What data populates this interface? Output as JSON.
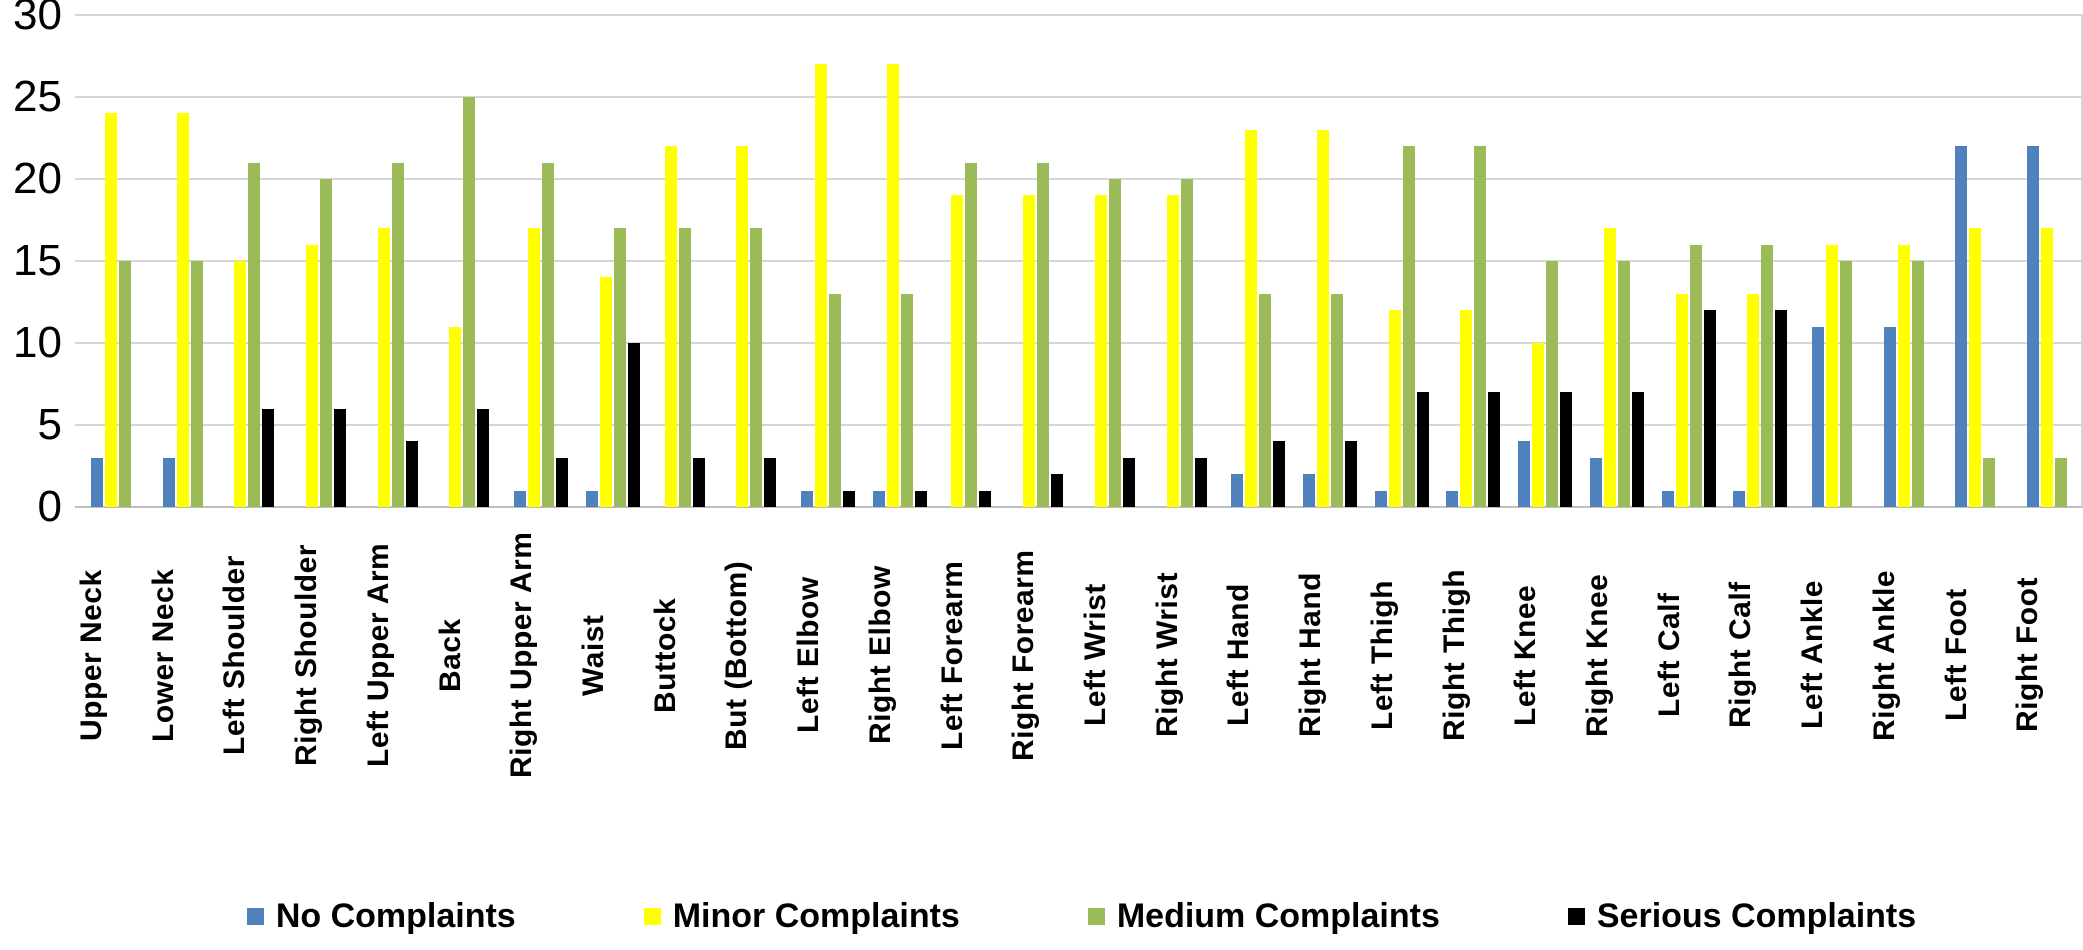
{
  "chart_data": {
    "type": "bar",
    "title": "",
    "xlabel": "",
    "ylabel": "",
    "categories": [
      "Upper Neck",
      "Lower Neck",
      "Left Shoulder",
      "Right Shoulder",
      "Left Upper Arm",
      "Back",
      "Right Upper Arm",
      "Waist",
      "Buttock",
      "But (Bottom)",
      "Left Elbow",
      "Right Elbow",
      "Left Forearm",
      "Right Forearm",
      "Left Wrist",
      "Right Wrist",
      "Left Hand",
      "Right Hand",
      "Left Thigh",
      "Right Thigh",
      "Left Knee",
      "Right Knee",
      "Left Calf",
      "Right Calf",
      "Left Ankle",
      "Right Ankle",
      "Left Foot",
      "Right Foot"
    ],
    "series": [
      {
        "name": "No Complaints",
        "color": "#4f81bd",
        "values": [
          3,
          3,
          0,
          0,
          0,
          0,
          1,
          1,
          0,
          0,
          1,
          1,
          0,
          0,
          0,
          0,
          2,
          2,
          1,
          1,
          4,
          3,
          1,
          1,
          11,
          11,
          22,
          22
        ]
      },
      {
        "name": "Minor Complaints",
        "color": "#ffff00",
        "values": [
          24,
          24,
          15,
          16,
          17,
          11,
          17,
          14,
          22,
          22,
          27,
          27,
          19,
          19,
          19,
          19,
          23,
          23,
          12,
          12,
          10,
          17,
          13,
          13,
          16,
          16,
          17,
          17
        ]
      },
      {
        "name": "Medium Complaints",
        "color": "#9bbb59",
        "values": [
          15,
          15,
          21,
          20,
          21,
          25,
          21,
          17,
          17,
          17,
          13,
          13,
          21,
          21,
          20,
          20,
          13,
          13,
          22,
          22,
          15,
          15,
          16,
          16,
          15,
          15,
          3,
          3
        ]
      },
      {
        "name": "Serious Complaints",
        "color": "#000000",
        "values": [
          0,
          0,
          6,
          6,
          4,
          6,
          3,
          10,
          3,
          3,
          1,
          1,
          1,
          2,
          3,
          3,
          4,
          4,
          7,
          7,
          7,
          7,
          12,
          12,
          0,
          0,
          0,
          0
        ]
      }
    ],
    "y_ticks": [
      0,
      5,
      10,
      15,
      20,
      25,
      30
    ],
    "ylim": [
      0,
      30
    ],
    "grid": true,
    "legend_position": "bottom",
    "gridline_color": "#d6d6d6",
    "axis_line_color": "#bfbfbf",
    "text_color": "#000000"
  }
}
